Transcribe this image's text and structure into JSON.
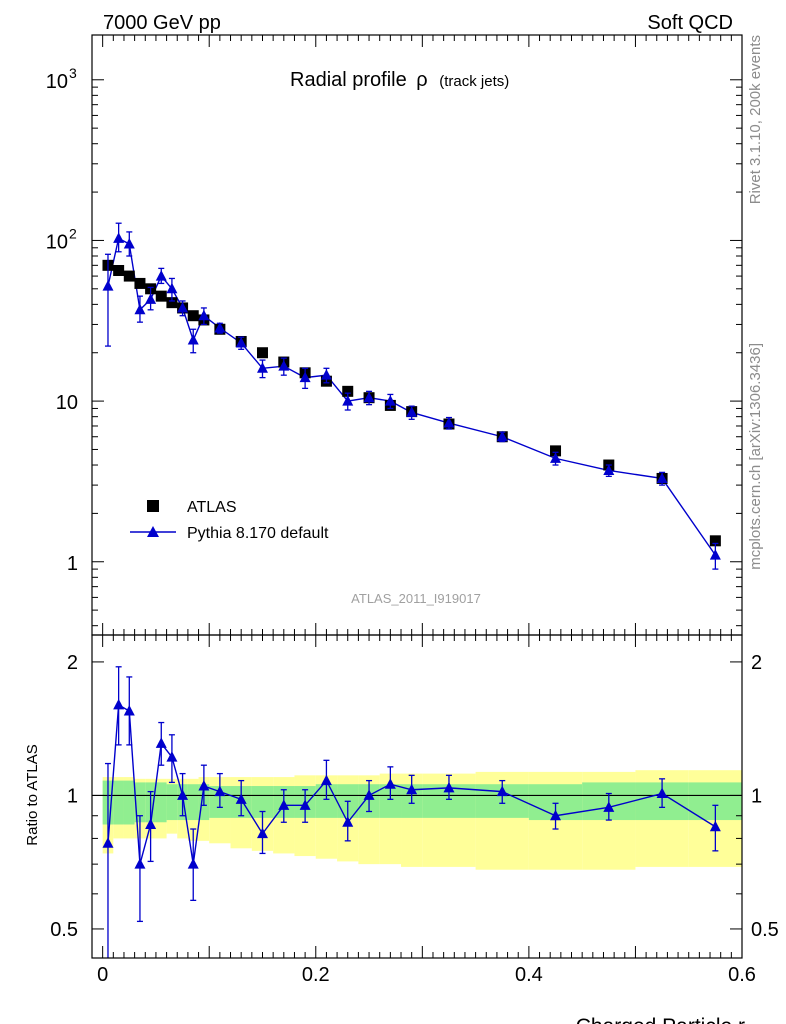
{
  "header": {
    "left": "7000 GeV pp",
    "right": "Soft QCD"
  },
  "side_labels": {
    "rivet": "Rivet 3.1.10,  200k events",
    "mcplots": "mcplots.cern.ch [arXiv:1306.3436]"
  },
  "chart_data": [
    {
      "type": "scatter",
      "title_main": "Radial profile",
      "title_symbol": "ρ",
      "title_suffix": "(track jets)",
      "analysis_label": "ATLAS_2011_I919017",
      "y_scale": "log",
      "ylim": [
        0.35,
        1900
      ],
      "xlim": [
        -0.01,
        0.6
      ],
      "y_ticks": [
        {
          "value": 1,
          "label": "1"
        },
        {
          "value": 10,
          "label": "10"
        },
        {
          "value": 100,
          "label": "10",
          "exp": "2"
        },
        {
          "value": 1000,
          "label": "10",
          "exp": "3"
        }
      ],
      "legend_position": "lower-left",
      "series": [
        {
          "name": "ATLAS",
          "color": "#000000",
          "marker": "square",
          "x": [
            0.005,
            0.015,
            0.025,
            0.035,
            0.045,
            0.055,
            0.065,
            0.075,
            0.085,
            0.095,
            0.11,
            0.13,
            0.15,
            0.17,
            0.19,
            0.21,
            0.23,
            0.25,
            0.27,
            0.29,
            0.325,
            0.375,
            0.425,
            0.475,
            0.525,
            0.575
          ],
          "y": [
            70,
            65,
            60,
            54,
            50,
            45,
            41,
            38,
            34,
            32,
            28,
            23.5,
            20,
            17.5,
            15,
            13.3,
            11.5,
            10.5,
            9.4,
            8.6,
            7.2,
            6.0,
            4.9,
            4.0,
            3.3,
            1.35
          ]
        },
        {
          "name": "Pythia 8.170 default",
          "color": "#0000cc",
          "marker": "triangle",
          "line": true,
          "x": [
            0.005,
            0.015,
            0.025,
            0.035,
            0.045,
            0.055,
            0.065,
            0.075,
            0.085,
            0.095,
            0.11,
            0.13,
            0.15,
            0.17,
            0.19,
            0.21,
            0.23,
            0.25,
            0.27,
            0.29,
            0.325,
            0.375,
            0.425,
            0.475,
            0.525,
            0.575
          ],
          "y": [
            52,
            103,
            95,
            37,
            43,
            60,
            50,
            38,
            24,
            34,
            28.5,
            23,
            16,
            16.5,
            14,
            14.5,
            10,
            10.5,
            10,
            8.5,
            7.3,
            6.0,
            4.4,
            3.7,
            3.3,
            1.1
          ],
          "err_low": [
            30,
            18,
            15,
            6,
            6,
            6,
            8,
            4,
            4,
            4,
            2,
            2,
            2,
            2,
            2,
            1.5,
            1.2,
            1,
            1,
            0.8,
            0.6,
            0.4,
            0.4,
            0.3,
            0.3,
            0.2
          ],
          "err_high": [
            30,
            25,
            18,
            8,
            8,
            7,
            8,
            4,
            4,
            4,
            2,
            2,
            2,
            2,
            2,
            1.5,
            1.2,
            1,
            1,
            0.8,
            0.6,
            0.4,
            0.4,
            0.3,
            0.3,
            0.2
          ]
        }
      ]
    },
    {
      "type": "line",
      "ylabel": "Ratio to ATLAS",
      "xlabel": "Charged Particle r",
      "y_scale": "log",
      "ylim": [
        0.43,
        2.3
      ],
      "xlim": [
        -0.01,
        0.6
      ],
      "y_ticks": [
        {
          "value": 0.5,
          "label": "0.5"
        },
        {
          "value": 1,
          "label": "1"
        },
        {
          "value": 2,
          "label": "2"
        }
      ],
      "x_ticks": [
        {
          "value": 0,
          "label": "0"
        },
        {
          "value": 0.2,
          "label": "0.2"
        },
        {
          "value": 0.4,
          "label": "0.4"
        },
        {
          "value": 0.6,
          "label": "0.6"
        }
      ],
      "bands": {
        "x_edges": [
          0.0,
          0.01,
          0.02,
          0.03,
          0.04,
          0.05,
          0.06,
          0.07,
          0.08,
          0.09,
          0.1,
          0.12,
          0.14,
          0.16,
          0.18,
          0.2,
          0.22,
          0.24,
          0.26,
          0.28,
          0.3,
          0.35,
          0.4,
          0.45,
          0.5,
          0.55,
          0.6
        ],
        "inner_color": "#90ee90",
        "outer_color": "#ffff99",
        "inner_low": [
          0.86,
          0.86,
          0.86,
          0.87,
          0.87,
          0.87,
          0.88,
          0.88,
          0.88,
          0.88,
          0.89,
          0.89,
          0.89,
          0.89,
          0.89,
          0.89,
          0.89,
          0.89,
          0.89,
          0.89,
          0.89,
          0.89,
          0.88,
          0.88,
          0.88,
          0.88
        ],
        "inner_high": [
          1.08,
          1.08,
          1.08,
          1.07,
          1.07,
          1.07,
          1.06,
          1.06,
          1.06,
          1.06,
          1.05,
          1.05,
          1.05,
          1.05,
          1.05,
          1.06,
          1.06,
          1.06,
          1.06,
          1.06,
          1.06,
          1.06,
          1.06,
          1.07,
          1.07,
          1.07
        ],
        "outer_low": [
          0.74,
          0.8,
          0.8,
          0.8,
          0.8,
          0.8,
          0.82,
          0.8,
          0.79,
          0.79,
          0.78,
          0.76,
          0.75,
          0.74,
          0.73,
          0.72,
          0.71,
          0.7,
          0.7,
          0.69,
          0.69,
          0.68,
          0.68,
          0.68,
          0.69,
          0.69
        ],
        "outer_high": [
          1.1,
          1.1,
          1.1,
          1.09,
          1.09,
          1.09,
          1.09,
          1.09,
          1.09,
          1.1,
          1.1,
          1.1,
          1.1,
          1.1,
          1.11,
          1.11,
          1.11,
          1.11,
          1.12,
          1.12,
          1.12,
          1.13,
          1.13,
          1.13,
          1.14,
          1.14
        ]
      },
      "series": [
        {
          "name": "Pythia 8.170 default",
          "color": "#0000cc",
          "x": [
            0.005,
            0.015,
            0.025,
            0.035,
            0.045,
            0.055,
            0.065,
            0.075,
            0.085,
            0.095,
            0.11,
            0.13,
            0.15,
            0.17,
            0.19,
            0.21,
            0.23,
            0.25,
            0.27,
            0.29,
            0.325,
            0.375,
            0.425,
            0.475,
            0.525,
            0.575
          ],
          "y": [
            0.78,
            1.6,
            1.55,
            0.7,
            0.86,
            1.31,
            1.22,
            1.0,
            0.7,
            1.05,
            1.02,
            0.98,
            0.82,
            0.95,
            0.95,
            1.08,
            0.87,
            1.0,
            1.06,
            1.03,
            1.04,
            1.02,
            0.9,
            0.94,
            1.01,
            0.85
          ],
          "err_low": [
            0.4,
            0.3,
            0.25,
            0.18,
            0.15,
            0.14,
            0.15,
            0.1,
            0.12,
            0.1,
            0.08,
            0.08,
            0.08,
            0.08,
            0.08,
            0.1,
            0.08,
            0.08,
            0.08,
            0.07,
            0.06,
            0.06,
            0.06,
            0.06,
            0.07,
            0.1
          ],
          "err_high": [
            0.4,
            0.35,
            0.3,
            0.2,
            0.16,
            0.15,
            0.15,
            0.12,
            0.14,
            0.12,
            0.1,
            0.1,
            0.1,
            0.08,
            0.08,
            0.12,
            0.1,
            0.08,
            0.1,
            0.08,
            0.07,
            0.06,
            0.06,
            0.07,
            0.08,
            0.1
          ]
        }
      ]
    }
  ]
}
